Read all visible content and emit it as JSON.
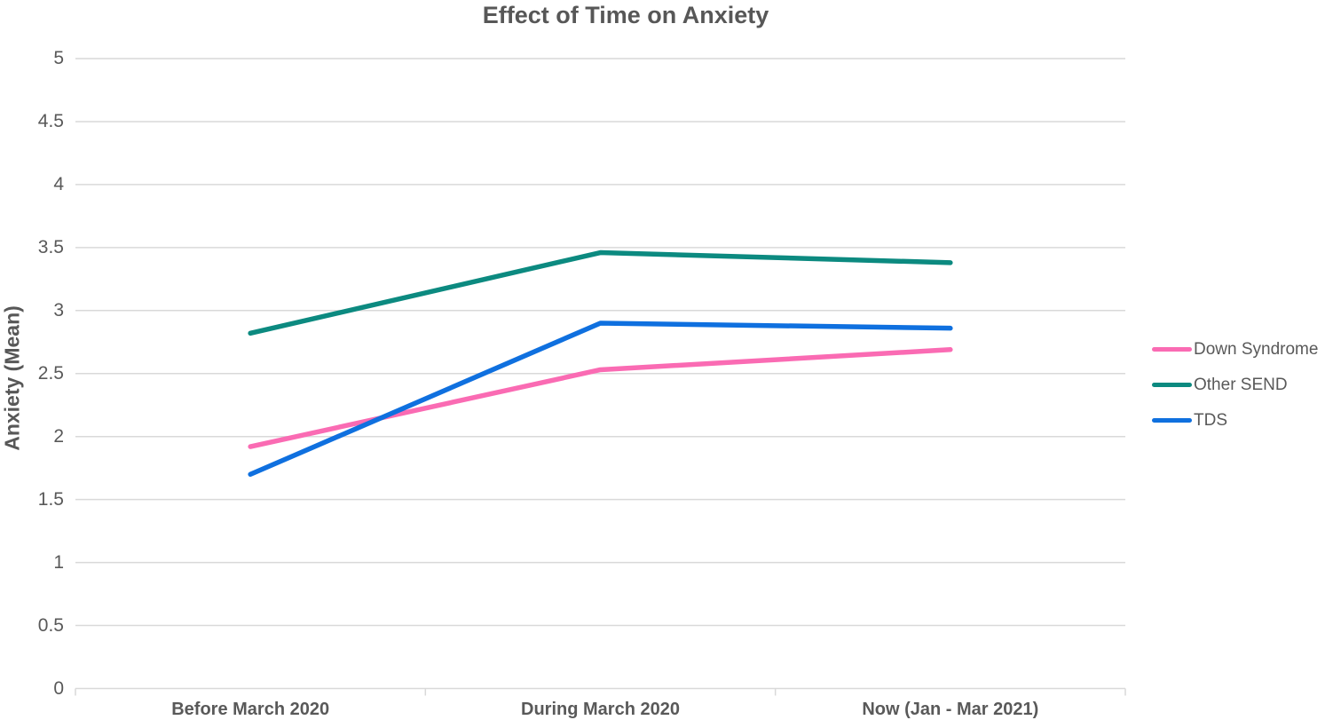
{
  "chart_data": {
    "type": "line",
    "title": "Effect of Time on Anxiety",
    "xlabel": "",
    "ylabel": "Anxiety (Mean)",
    "categories": [
      "Before March 2020",
      "During March 2020",
      "Now (Jan - Mar 2021)"
    ],
    "series": [
      {
        "name": "Down Syndrome",
        "values": [
          1.92,
          2.53,
          2.69
        ],
        "color": "#FA6BB3"
      },
      {
        "name": "Other SEND",
        "values": [
          2.82,
          3.46,
          3.38
        ],
        "color": "#0C8A80"
      },
      {
        "name": "TDS",
        "values": [
          1.7,
          2.9,
          2.86
        ],
        "color": "#0F70DF"
      }
    ],
    "ylim": [
      0,
      5
    ],
    "ytick_step": 0.5,
    "y_ticks": [
      "0",
      "0.5",
      "1",
      "1.5",
      "2",
      "2.5",
      "3",
      "3.5",
      "4",
      "4.5",
      "5"
    ],
    "grid": true,
    "legend_position": "right",
    "colors": {
      "gridline": "#D9D9D9",
      "axis_line": "#D9D9D9",
      "axis_text": "#595959",
      "title_text": "#575757"
    }
  }
}
